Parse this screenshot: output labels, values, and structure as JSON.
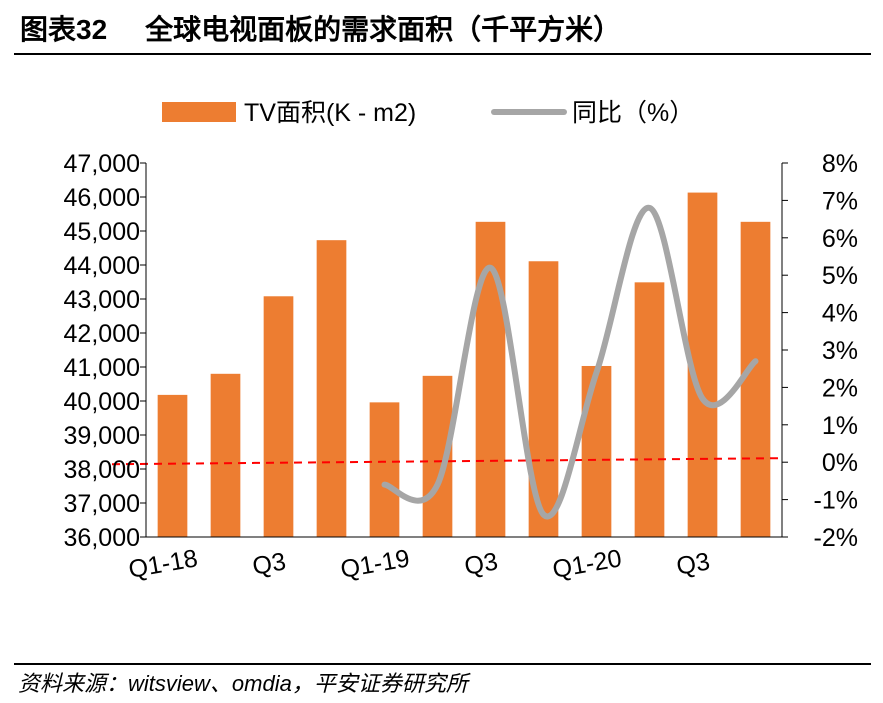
{
  "figure": {
    "label": "图表32",
    "title": "全球电视面板的需求面积（千平方米）",
    "source": "资料来源：witsview、omdia，平安证券研究所"
  },
  "colors": {
    "bar": "#ED7D31",
    "line": "#A6A6A6",
    "zero_line": "#FF0000"
  },
  "chart_data": {
    "type": "bar",
    "categories": [
      "Q1-18",
      "Q2-18",
      "Q3-18",
      "Q4-18",
      "Q1-19",
      "Q2-19",
      "Q3-19",
      "Q4-19",
      "Q1-20",
      "Q2-20",
      "Q3-20",
      "Q4-20"
    ],
    "x_tick_labels": [
      "Q1-18",
      "",
      "Q3",
      "",
      "Q1-19",
      "",
      "Q3",
      "",
      "Q1-20",
      "",
      "Q3",
      ""
    ],
    "series": [
      {
        "name": "TV面积(K - m2)",
        "type": "bar",
        "axis": "left",
        "values": [
          40180,
          40800,
          43080,
          44730,
          39960,
          40740,
          45270,
          44110,
          41030,
          43490,
          46130,
          45270
        ]
      },
      {
        "name": "同比（%）",
        "type": "line",
        "axis": "right",
        "values": [
          null,
          null,
          null,
          null,
          -0.6,
          -0.6,
          5.2,
          -1.4,
          2.4,
          6.8,
          1.7,
          2.7
        ]
      }
    ],
    "ylim_left": [
      36000,
      47000
    ],
    "yticks_left": [
      "36,000",
      "37,000",
      "38,000",
      "39,000",
      "40,000",
      "41,000",
      "42,000",
      "43,000",
      "44,000",
      "45,000",
      "46,000",
      "47,000"
    ],
    "ylim_right": [
      -2,
      8
    ],
    "yticks_right": [
      "-2%",
      "-1%",
      "0%",
      "1%",
      "2%",
      "3%",
      "4%",
      "5%",
      "6%",
      "7%",
      "8%"
    ],
    "reference_line": {
      "axis": "right",
      "value": 0,
      "style": "dashed"
    },
    "legend": {
      "position": "top"
    },
    "grid": false
  }
}
